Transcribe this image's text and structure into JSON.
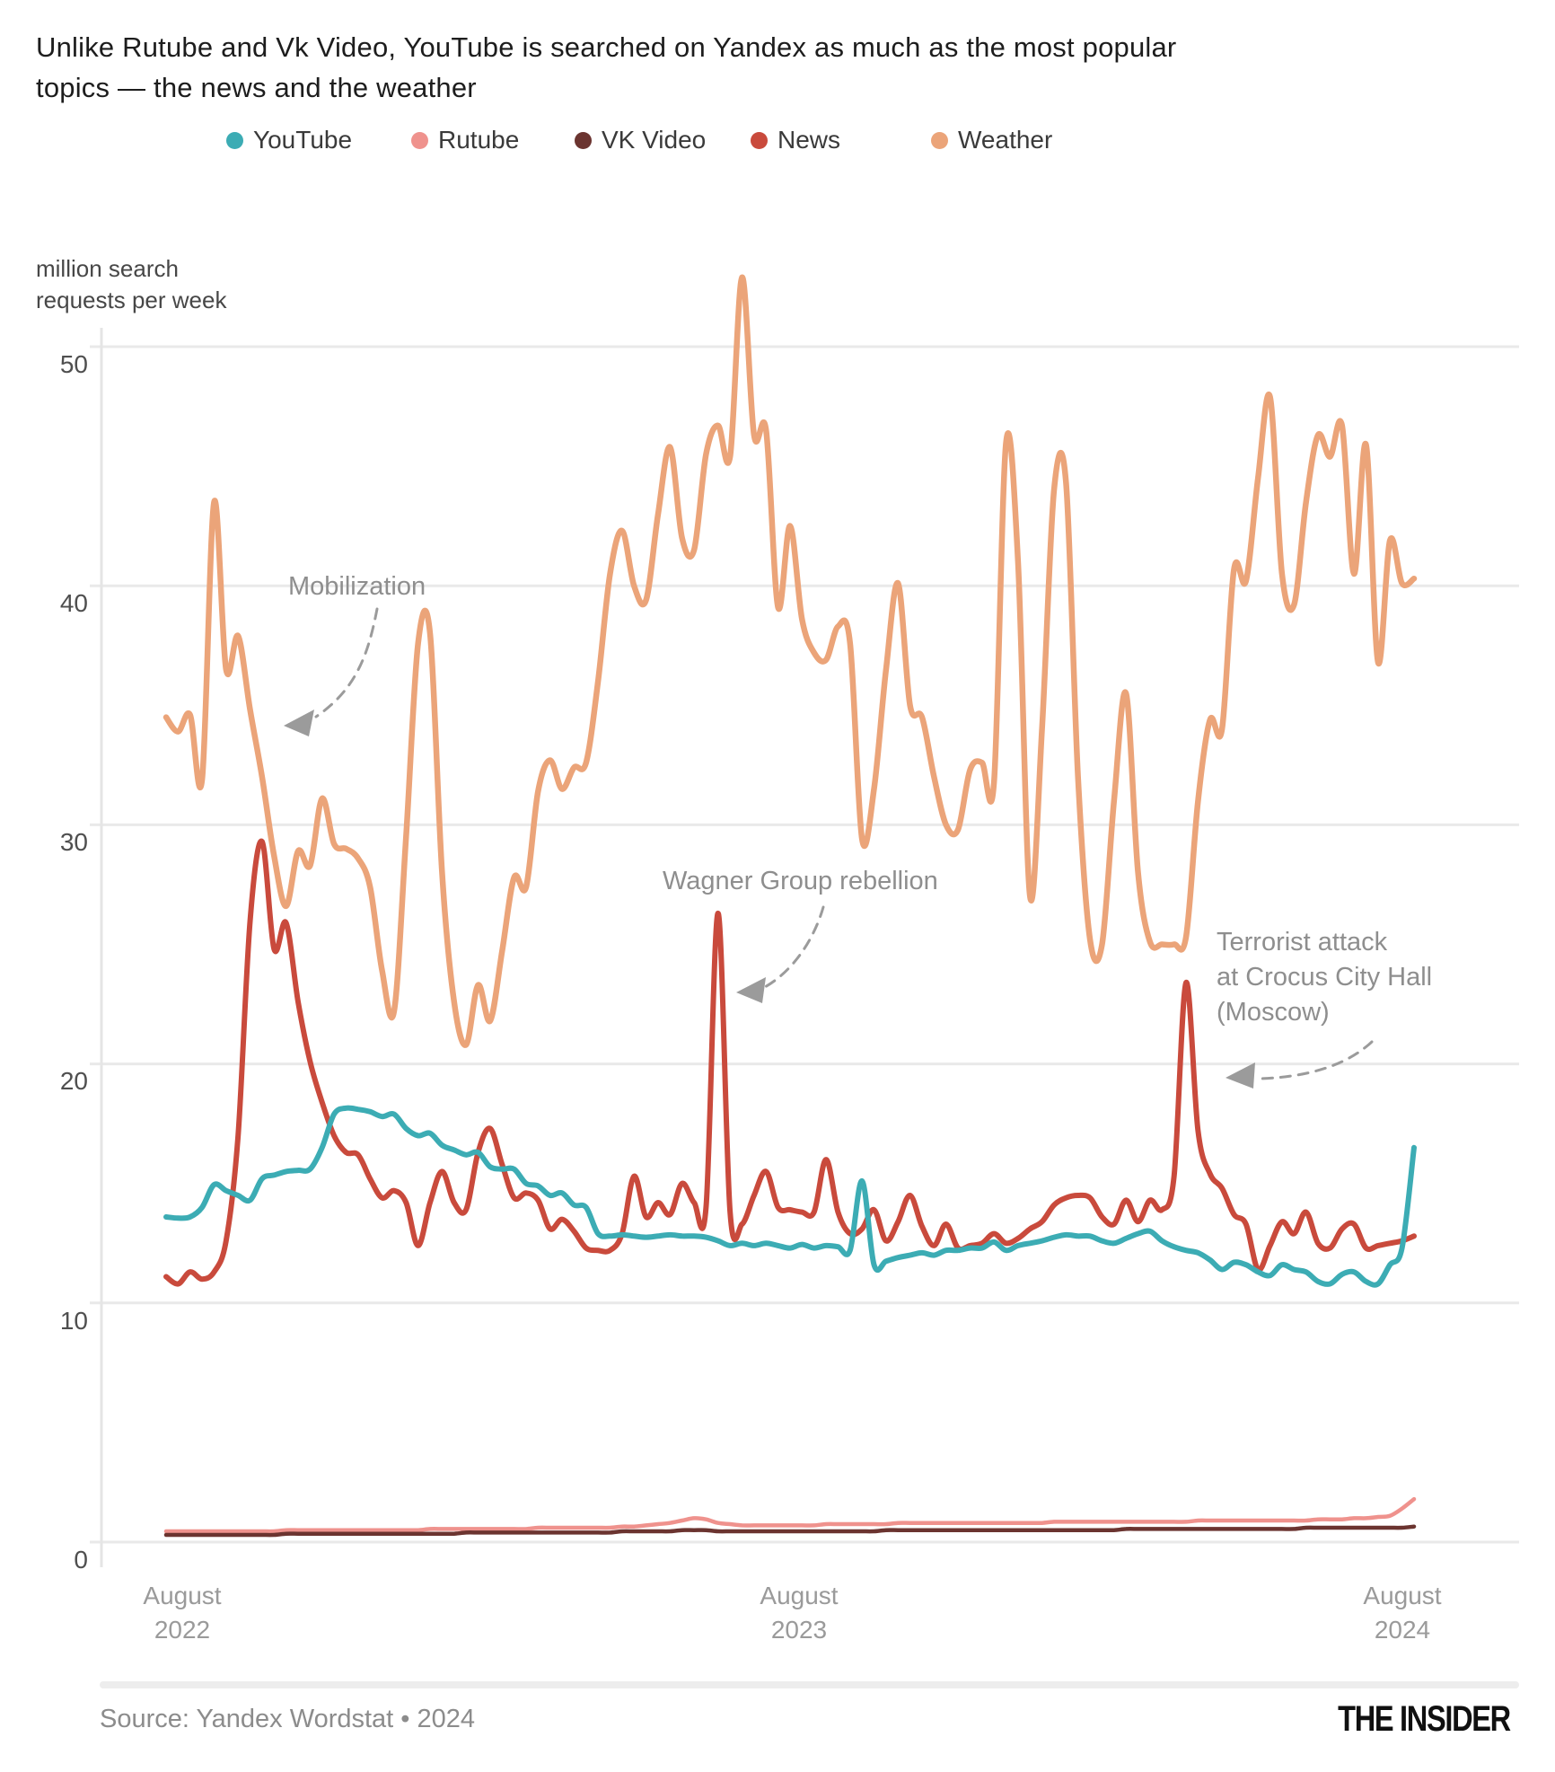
{
  "title": {
    "line1": "Unlike Rutube and Vk Video, YouTube is searched on Yandex as much as the most popular",
    "line2": "topics — the news and the weather"
  },
  "legend": [
    {
      "label": "YouTube",
      "color": "#3cacb4"
    },
    {
      "label": "Rutube",
      "color": "#ef928d"
    },
    {
      "label": "VK Video",
      "color": "#6b3430"
    },
    {
      "label": "News",
      "color": "#c94a3c"
    },
    {
      "label": "Weather",
      "color": "#eba479"
    }
  ],
  "y_axis": {
    "unit_label_line1": "million search",
    "unit_label_line2": "requests per week",
    "ticks": [
      "50",
      "40",
      "30",
      "20",
      "10",
      "0"
    ]
  },
  "x_axis": {
    "ticks": [
      {
        "month": "August",
        "year": "2022"
      },
      {
        "month": "August",
        "year": "2023"
      },
      {
        "month": "August",
        "year": "2024"
      }
    ]
  },
  "annotations": {
    "mobilization": "Mobilization",
    "wagner": "Wagner Group rebellion",
    "crocus_line1": "Terrorist attack",
    "crocus_line2": "at Crocus City Hall",
    "crocus_line3": "(Moscow)"
  },
  "source": "Source: Yandex Wordstat • 2024",
  "logo": "THE INSIDER",
  "chart_data": {
    "type": "line",
    "title": "Unlike Rutube and Vk Video, YouTube is searched on Yandex as much as the most popular topics — the news and the weather",
    "ylabel": "million search requests per week",
    "x_range": [
      "August 2022",
      "August 2024"
    ],
    "x_step": "1 week",
    "ylim": [
      0,
      55
    ],
    "grid_values": [
      0,
      10,
      20,
      30,
      40,
      50
    ],
    "legend_position": "top",
    "events": [
      {
        "label": "Mobilization",
        "series": "News",
        "approx_value": 29.3
      },
      {
        "label": "Wagner Group rebellion",
        "series": "News",
        "approx_value": 26.3
      },
      {
        "label": "Terrorist attack at Crocus City Hall (Moscow)",
        "series": "News",
        "approx_value": 23.4
      }
    ],
    "series": [
      {
        "name": "Rutube",
        "color": "#ef928d",
        "values": [
          0.45,
          0.45,
          0.45,
          0.45,
          0.45,
          0.45,
          0.45,
          0.45,
          0.45,
          0.45,
          0.5,
          0.5,
          0.5,
          0.5,
          0.5,
          0.5,
          0.5,
          0.5,
          0.5,
          0.5,
          0.5,
          0.5,
          0.55,
          0.55,
          0.55,
          0.55,
          0.55,
          0.55,
          0.55,
          0.55,
          0.55,
          0.6,
          0.6,
          0.6,
          0.6,
          0.6,
          0.6,
          0.6,
          0.65,
          0.65,
          0.7,
          0.75,
          0.8,
          0.9,
          1.0,
          0.95,
          0.8,
          0.75,
          0.7,
          0.7,
          0.7,
          0.7,
          0.7,
          0.7,
          0.7,
          0.75,
          0.75,
          0.75,
          0.75,
          0.75,
          0.75,
          0.8,
          0.8,
          0.8,
          0.8,
          0.8,
          0.8,
          0.8,
          0.8,
          0.8,
          0.8,
          0.8,
          0.8,
          0.8,
          0.85,
          0.85,
          0.85,
          0.85,
          0.85,
          0.85,
          0.85,
          0.85,
          0.85,
          0.85,
          0.85,
          0.85,
          0.9,
          0.9,
          0.9,
          0.9,
          0.9,
          0.9,
          0.9,
          0.9,
          0.9,
          0.9,
          0.95,
          0.95,
          0.95,
          1.0,
          1.0,
          1.05,
          1.1,
          1.4,
          1.8
        ]
      },
      {
        "name": "VK Video",
        "color": "#6b3430",
        "values": [
          0.3,
          0.3,
          0.3,
          0.3,
          0.3,
          0.3,
          0.3,
          0.3,
          0.3,
          0.3,
          0.35,
          0.35,
          0.35,
          0.35,
          0.35,
          0.35,
          0.35,
          0.35,
          0.35,
          0.35,
          0.35,
          0.35,
          0.35,
          0.35,
          0.35,
          0.4,
          0.4,
          0.4,
          0.4,
          0.4,
          0.4,
          0.4,
          0.4,
          0.4,
          0.4,
          0.4,
          0.4,
          0.4,
          0.45,
          0.45,
          0.45,
          0.45,
          0.45,
          0.5,
          0.5,
          0.5,
          0.45,
          0.45,
          0.45,
          0.45,
          0.45,
          0.45,
          0.45,
          0.45,
          0.45,
          0.45,
          0.45,
          0.45,
          0.45,
          0.45,
          0.5,
          0.5,
          0.5,
          0.5,
          0.5,
          0.5,
          0.5,
          0.5,
          0.5,
          0.5,
          0.5,
          0.5,
          0.5,
          0.5,
          0.5,
          0.5,
          0.5,
          0.5,
          0.5,
          0.5,
          0.55,
          0.55,
          0.55,
          0.55,
          0.55,
          0.55,
          0.55,
          0.55,
          0.55,
          0.55,
          0.55,
          0.55,
          0.55,
          0.55,
          0.55,
          0.6,
          0.6,
          0.6,
          0.6,
          0.6,
          0.6,
          0.6,
          0.6,
          0.6,
          0.65
        ]
      },
      {
        "name": "Weather",
        "color": "#eba479",
        "values": [
          34.5,
          33.9,
          34.6,
          31.9,
          43.5,
          36.5,
          37.9,
          34.8,
          32.0,
          28.7,
          26.6,
          28.9,
          28.3,
          31.1,
          29.2,
          29.0,
          28.6,
          27.4,
          23.9,
          22.2,
          29.5,
          37.6,
          38.0,
          28.0,
          22.6,
          20.8,
          23.3,
          21.8,
          24.7,
          27.8,
          27.4,
          31.4,
          32.7,
          31.5,
          32.4,
          32.6,
          36.0,
          40.5,
          42.3,
          40.0,
          39.4,
          43.0,
          45.8,
          42.0,
          41.5,
          45.5,
          46.7,
          45.4,
          52.9,
          46.3,
          46.5,
          39.1,
          42.5,
          38.6,
          37.2,
          36.9,
          38.3,
          37.6,
          29.4,
          31.5,
          36.5,
          40.1,
          35.0,
          34.5,
          32.0,
          30.0,
          29.8,
          32.3,
          32.6,
          31.8,
          46.0,
          41.0,
          27.0,
          34.0,
          44.0,
          44.3,
          32.0,
          25.2,
          25.0,
          31.0,
          35.5,
          28.0,
          25.1,
          25.0,
          25.0,
          25.3,
          31.0,
          34.4,
          34.0,
          40.7,
          40.2,
          44.5,
          47.9,
          40.5,
          39.2,
          43.5,
          46.3,
          45.4,
          46.7,
          40.5,
          45.9,
          36.8,
          41.9,
          40.1,
          40.3
        ]
      },
      {
        "name": "News",
        "color": "#c94a3c",
        "values": [
          11.1,
          10.8,
          11.3,
          11.0,
          11.3,
          12.6,
          17.0,
          26.0,
          29.3,
          24.8,
          25.9,
          22.6,
          20.1,
          18.4,
          17.0,
          16.3,
          16.2,
          15.2,
          14.4,
          14.7,
          14.2,
          12.4,
          14.2,
          15.5,
          14.2,
          13.9,
          16.3,
          17.3,
          15.8,
          14.4,
          14.6,
          14.3,
          13.1,
          13.5,
          13.0,
          12.3,
          12.2,
          12.2,
          12.9,
          15.3,
          13.6,
          14.2,
          13.7,
          15.0,
          14.2,
          14.0,
          26.3,
          13.8,
          13.3,
          14.5,
          15.5,
          14.0,
          13.9,
          13.8,
          13.8,
          16.0,
          13.8,
          12.9,
          13.1,
          13.9,
          12.6,
          13.4,
          14.5,
          13.2,
          12.4,
          13.3,
          12.3,
          12.4,
          12.5,
          12.9,
          12.5,
          12.7,
          13.1,
          13.4,
          14.1,
          14.4,
          14.5,
          14.4,
          13.6,
          13.3,
          14.3,
          13.4,
          14.3,
          13.9,
          15.3,
          23.4,
          17.2,
          15.4,
          14.8,
          13.7,
          13.3,
          11.4,
          12.4,
          13.4,
          12.9,
          13.8,
          12.5,
          12.3,
          13.1,
          13.3,
          12.3,
          12.4,
          12.5,
          12.6,
          12.8
        ]
      },
      {
        "name": "YouTube",
        "color": "#3cacb4",
        "values": [
          13.6,
          13.55,
          13.6,
          14.0,
          14.95,
          14.7,
          14.5,
          14.3,
          15.2,
          15.35,
          15.5,
          15.55,
          15.6,
          16.5,
          17.9,
          18.15,
          18.1,
          18.0,
          17.8,
          17.9,
          17.3,
          17.0,
          17.1,
          16.6,
          16.4,
          16.2,
          16.3,
          15.7,
          15.6,
          15.6,
          15.0,
          14.9,
          14.5,
          14.6,
          14.1,
          14.0,
          12.9,
          12.8,
          12.85,
          12.8,
          12.75,
          12.8,
          12.85,
          12.8,
          12.8,
          12.75,
          12.6,
          12.4,
          12.5,
          12.4,
          12.5,
          12.4,
          12.3,
          12.45,
          12.3,
          12.4,
          12.35,
          12.2,
          15.1,
          11.6,
          11.75,
          11.9,
          12.0,
          12.1,
          12.0,
          12.2,
          12.2,
          12.3,
          12.3,
          12.55,
          12.2,
          12.4,
          12.5,
          12.6,
          12.75,
          12.85,
          12.8,
          12.8,
          12.6,
          12.5,
          12.7,
          12.9,
          13.0,
          12.6,
          12.35,
          12.2,
          12.1,
          11.8,
          11.4,
          11.7,
          11.6,
          11.3,
          11.15,
          11.6,
          11.4,
          11.3,
          10.9,
          10.8,
          11.2,
          11.3,
          10.9,
          10.8,
          11.6,
          12.3,
          16.5
        ]
      }
    ]
  }
}
